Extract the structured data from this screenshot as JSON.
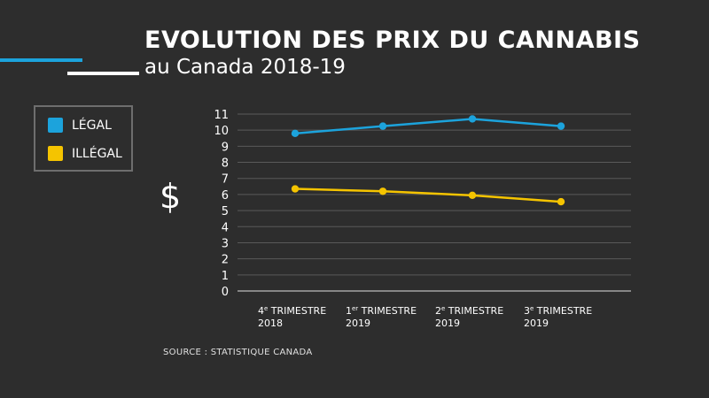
{
  "title": "EVOLUTION DES PRIX DU CANNABIS",
  "subtitle": "au Canada 2018-19",
  "currency_symbol": "$",
  "source": "SOURCE : STATISTIQUE CANADA",
  "colors": {
    "legal": "#1ca3dc",
    "illegal": "#f5c400",
    "grid": "#5a5a5a",
    "axis": "#bdbdbd",
    "accent_white": "#ffffff"
  },
  "chart_data": {
    "type": "line",
    "title": "EVOLUTION DES PRIX DU CANNABIS",
    "subtitle": "au Canada 2018-19",
    "ylabel": "$",
    "xlabel": "",
    "ylim": [
      0,
      11
    ],
    "yticks": [
      "0",
      "1",
      "2",
      "3",
      "4",
      "5",
      "6",
      "7",
      "8",
      "9",
      "10",
      "11"
    ],
    "grid": true,
    "legend_position": "left",
    "categories": [
      {
        "num": "4",
        "sup": "e",
        "rest": " TRIMESTRE",
        "year": "2018"
      },
      {
        "num": "1",
        "sup": "er",
        "rest": " TRIMESTRE",
        "year": "2019"
      },
      {
        "num": "2",
        "sup": "e",
        "rest": " TRIMESTRE",
        "year": "2019"
      },
      {
        "num": "3",
        "sup": "e",
        "rest": " TRIMESTRE",
        "year": "2019"
      }
    ],
    "series": [
      {
        "name": "LÉGAL",
        "color": "#1ca3dc",
        "values": [
          9.8,
          10.25,
          10.7,
          10.25
        ]
      },
      {
        "name": "ILLÉGAL",
        "color": "#f5c400",
        "values": [
          6.35,
          6.2,
          5.95,
          5.55
        ]
      }
    ]
  }
}
